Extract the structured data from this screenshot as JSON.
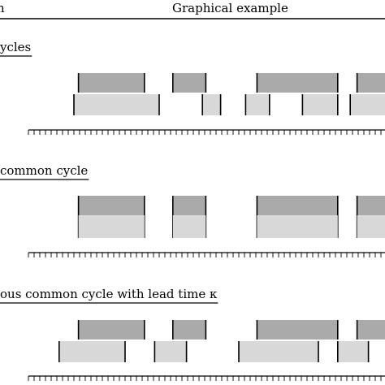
{
  "header": {
    "left_label": "n",
    "right_label": "Graphical example"
  },
  "sections": [
    {
      "label": "ycles",
      "top_row": [
        {
          "start": 4.4,
          "end": 10.2
        },
        {
          "start": 12.7,
          "end": 15.6
        },
        {
          "start": 20.1,
          "end": 27.2
        },
        {
          "start": 28.9,
          "end": 31.5
        }
      ],
      "bottom_row": [
        {
          "start": 4.0,
          "end": 11.5
        },
        {
          "start": 15.3,
          "end": 16.9
        },
        {
          "start": 19.1,
          "end": 21.2
        },
        {
          "start": 24.1,
          "end": 27.2
        },
        {
          "start": 28.3,
          "end": 31.5
        }
      ]
    },
    {
      "label": "common cycle",
      "top_row": [
        {
          "start": 4.4,
          "end": 10.2
        },
        {
          "start": 12.7,
          "end": 15.6
        },
        {
          "start": 20.1,
          "end": 27.2
        },
        {
          "start": 28.9,
          "end": 31.5
        }
      ],
      "bottom_row": [
        {
          "start": 4.4,
          "end": 10.2
        },
        {
          "start": 12.7,
          "end": 15.6
        },
        {
          "start": 20.1,
          "end": 27.2
        },
        {
          "start": 28.9,
          "end": 31.5
        }
      ]
    },
    {
      "label": "ous common cycle with lead time κ",
      "top_row": [
        {
          "start": 4.4,
          "end": 10.2
        },
        {
          "start": 12.7,
          "end": 15.6
        },
        {
          "start": 20.1,
          "end": 27.2
        },
        {
          "start": 28.9,
          "end": 31.5
        }
      ],
      "bottom_row": [
        {
          "start": 2.7,
          "end": 8.5
        },
        {
          "start": 11.1,
          "end": 13.9
        },
        {
          "start": 18.5,
          "end": 25.5
        },
        {
          "start": 27.2,
          "end": 29.9
        }
      ]
    }
  ],
  "timeline": {
    "start": 0,
    "end": 31.5,
    "tick_step": 0.5
  },
  "colors": {
    "top_bar": "#aaaaaa",
    "bottom_bar": "#d8d8d8",
    "line": "#000000"
  }
}
